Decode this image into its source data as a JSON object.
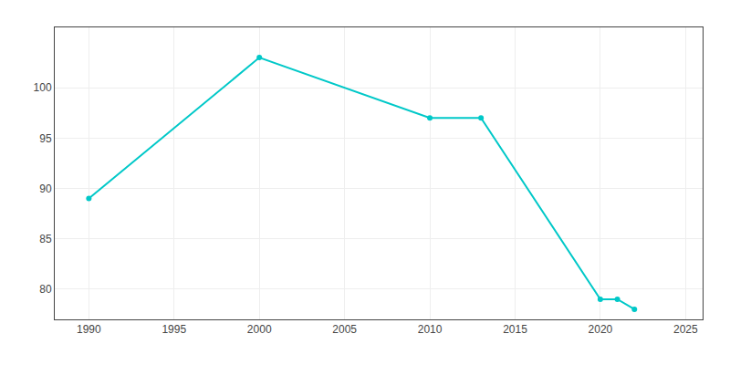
{
  "chart_data": {
    "type": "line",
    "x": [
      1990,
      2000,
      2010,
      2013,
      2020,
      2021,
      2022
    ],
    "values": [
      89,
      103,
      97,
      97,
      79,
      79,
      78
    ],
    "color": "#00c8c8",
    "marker": "circle",
    "line_style": "solid",
    "xlim": [
      1988,
      2026
    ],
    "ylim": [
      77,
      106
    ],
    "xticks": [
      1990,
      1995,
      2000,
      2005,
      2010,
      2015,
      2020,
      2025
    ],
    "yticks": [
      80,
      85,
      90,
      95,
      100
    ],
    "grid": true
  }
}
